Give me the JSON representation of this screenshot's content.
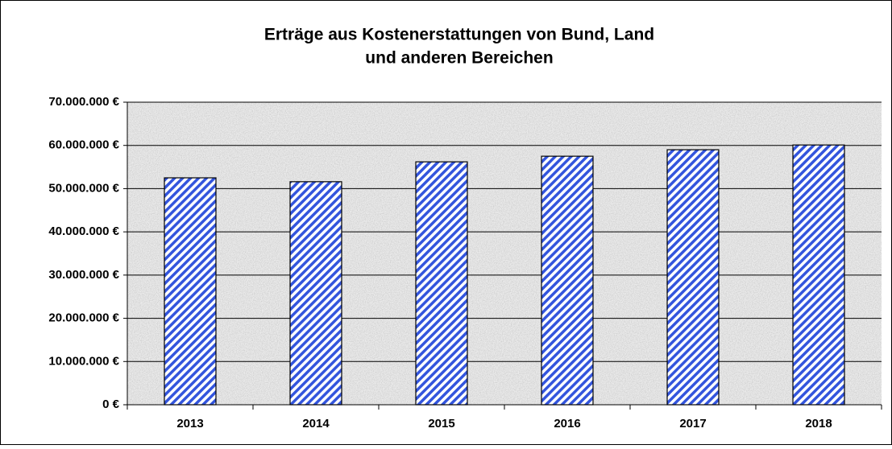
{
  "chart_data": {
    "type": "bar",
    "title": [
      "Erträge aus Kostenerstattungen von Bund, Land",
      "und anderen Bereichen"
    ],
    "categories": [
      "2013",
      "2014",
      "2015",
      "2016",
      "2017",
      "2018"
    ],
    "values": [
      52500000,
      51600000,
      56200000,
      57500000,
      59000000,
      60100000
    ],
    "color": "#3355dd",
    "ylim": [
      0,
      70000000
    ],
    "yticks": [
      {
        "value": 0,
        "label": "0 €"
      },
      {
        "value": 10000000,
        "label": "10.000.000 €"
      },
      {
        "value": 20000000,
        "label": "20.000.000 €"
      },
      {
        "value": 30000000,
        "label": "30.000.000 €"
      },
      {
        "value": 40000000,
        "label": "40.000.000 €"
      },
      {
        "value": 50000000,
        "label": "50.000.000 €"
      },
      {
        "value": 60000000,
        "label": "60.000.000 €"
      },
      {
        "value": 70000000,
        "label": "70.000.000 €"
      }
    ],
    "grid": true
  }
}
